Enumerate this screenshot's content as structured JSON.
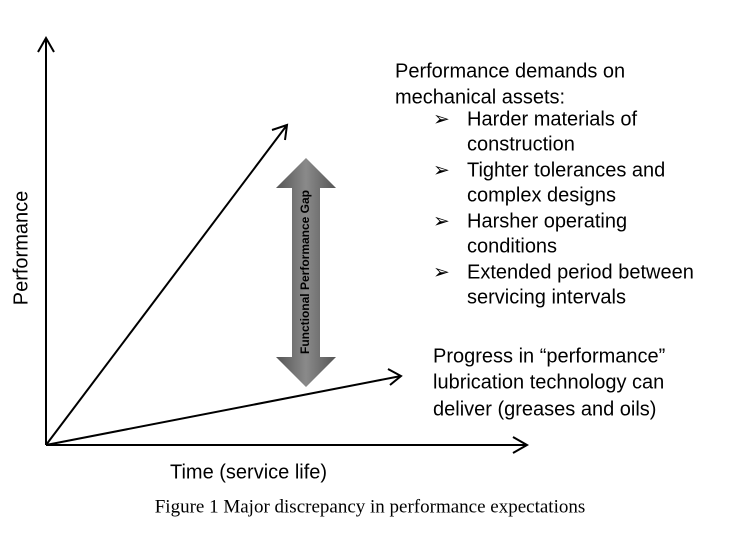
{
  "axes": {
    "y_label": "Performance",
    "x_label": "Time (service life)"
  },
  "gap_label": "Functional Performance Gap",
  "demands": {
    "title": [
      "Performance demands on",
      "mechanical assets:"
    ],
    "bullet": "➢",
    "items": [
      [
        "Harder materials of",
        "construction"
      ],
      [
        "Tighter tolerances and",
        "complex designs"
      ],
      [
        "Harsher operating",
        "conditions"
      ],
      [
        "Extended period between",
        "servicing intervals"
      ]
    ]
  },
  "progress": [
    "Progress in “performance”",
    "lubrication technology can",
    "deliver (greases and oils)"
  ],
  "caption": "Figure 1 Major discrepancy in performance expectations"
}
